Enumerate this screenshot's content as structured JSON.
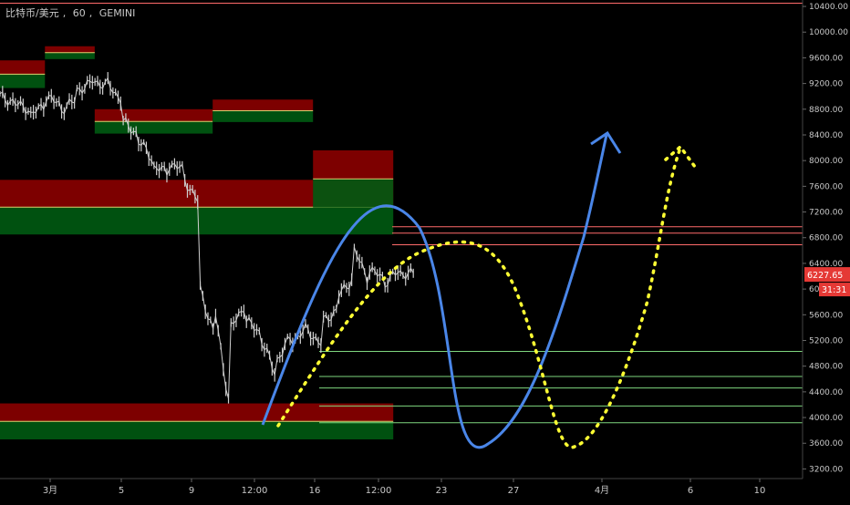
{
  "header": {
    "symbol": "比特币/美元",
    "interval": "60",
    "exchange": "GEMINI"
  },
  "colors": {
    "background": "#000000",
    "axis_text": "#c8c8c8",
    "price_badge": "#e53935",
    "zone_red": "#8b0000",
    "zone_green": "#005a12",
    "line_red": "#ff6b6b",
    "line_green": "#7ed67e",
    "drawing_blue": "#4a86e8",
    "drawing_yellow": "#ffff33",
    "candle": "#d0d0d0"
  },
  "chart_data": {
    "type": "candlestick",
    "title": "",
    "xlabel": "",
    "ylabel": "",
    "ylim": [
      3050,
      10500
    ],
    "y_ticks": [
      "10400.00",
      "10000.00",
      "9600.00",
      "9200.00",
      "8800.00",
      "8400.00",
      "8000.00",
      "7600.00",
      "7200.00",
      "6800.00",
      "6400.00",
      "6000.00",
      "5600.00",
      "5200.00",
      "4800.00",
      "4400.00",
      "4000.00",
      "3600.00",
      "3200.00"
    ],
    "x_ticks": [
      "3月",
      "5",
      "9",
      "12:00",
      "16",
      "12:00",
      "23",
      "27",
      "4月",
      "6",
      "10"
    ],
    "last_price": "6227.65",
    "countdown": "31:31",
    "price_path": [
      [
        9000,
        8900
      ],
      [
        8880,
        8800
      ],
      [
        8700,
        8900
      ],
      [
        9000,
        8850
      ],
      [
        8800,
        8950
      ],
      [
        9100,
        9200
      ],
      [
        9250,
        9150
      ],
      [
        9200,
        8900
      ],
      [
        8600,
        8400
      ],
      [
        8300,
        8000
      ],
      [
        7900,
        7800
      ],
      [
        7950,
        7850
      ],
      [
        7700,
        7300
      ],
      [
        6000,
        5200
      ],
      [
        5600,
        4000
      ],
      [
        5400,
        5800
      ],
      [
        5500,
        5300
      ],
      [
        5200,
        4600
      ],
      [
        4900,
        5300
      ],
      [
        5200,
        5400
      ],
      [
        5350,
        5100
      ],
      [
        5500,
        5700
      ],
      [
        5900,
        6200
      ],
      [
        6600,
        6100
      ],
      [
        6300,
        6150
      ],
      [
        6100,
        6300
      ],
      [
        6250,
        6227
      ]
    ],
    "horizontal_levels": [
      {
        "price": 10450,
        "color": "red"
      },
      {
        "price": 6970,
        "color": "red"
      },
      {
        "price": 6870,
        "color": "red"
      },
      {
        "price": 6690,
        "color": "red"
      },
      {
        "price": 5030,
        "color": "green"
      },
      {
        "price": 4640,
        "color": "green"
      },
      {
        "price": 4460,
        "color": "green"
      },
      {
        "price": 4180,
        "color": "green"
      },
      {
        "price": 3920,
        "color": "green"
      }
    ],
    "zones": [
      {
        "x0": 0.0,
        "x1": 0.056,
        "top": 9560,
        "bottom": 9130
      },
      {
        "x0": 0.056,
        "x1": 0.118,
        "top": 9780,
        "bottom": 9580
      },
      {
        "x0": 0.118,
        "x1": 0.265,
        "top": 8800,
        "bottom": 8420
      },
      {
        "x0": 0.265,
        "x1": 0.39,
        "top": 8950,
        "bottom": 8600
      },
      {
        "x0": 0.0,
        "x1": 0.49,
        "top": 7700,
        "bottom": 6850
      },
      {
        "x0": 0.39,
        "x1": 0.49,
        "top": 8160,
        "bottom": 7270
      },
      {
        "x0": 0.0,
        "x1": 0.49,
        "top": 4220,
        "bottom": 3660
      }
    ]
  }
}
